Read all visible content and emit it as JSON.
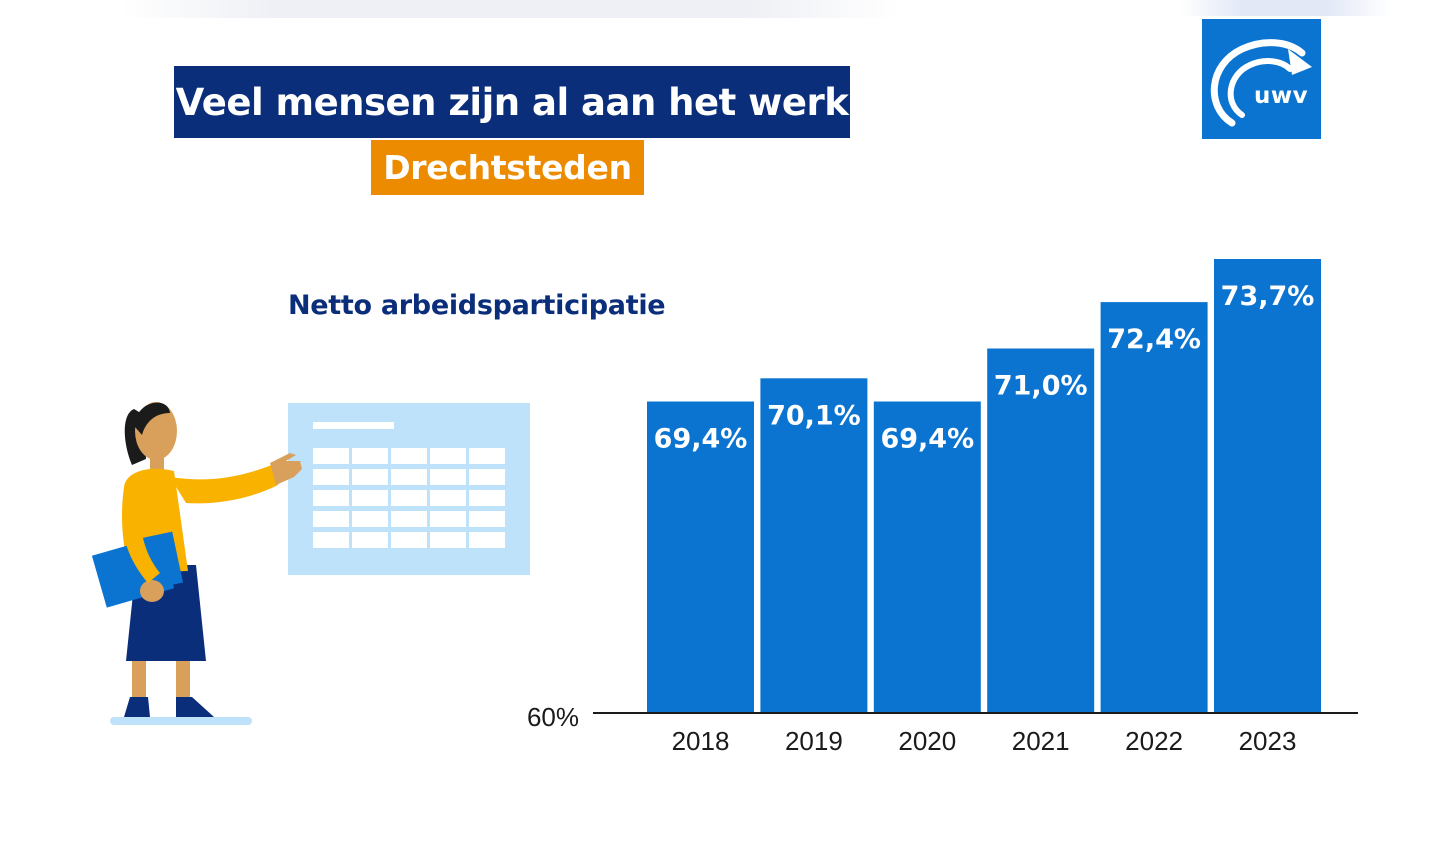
{
  "header": {
    "title": "Veel mensen zijn al aan het werk",
    "subtitle": "Drechtsteden"
  },
  "logo": {
    "text": "uwv",
    "icon": "uwv-arrow-logo-icon"
  },
  "colors": {
    "navy": "#0b2e7b",
    "orange": "#ed8b00",
    "bar_blue": "#0b74d0",
    "light_blue": "#bfe2fb"
  },
  "chart_data": {
    "type": "bar",
    "title": "Netto arbeidsparticipatie",
    "categories": [
      "2018",
      "2019",
      "2020",
      "2021",
      "2022",
      "2023"
    ],
    "values": [
      69.4,
      70.1,
      69.4,
      71.0,
      72.4,
      73.7
    ],
    "value_labels": [
      "69,4%",
      "70,1%",
      "69,4%",
      "71,0%",
      "72,4%",
      "73,7%"
    ],
    "baseline_label": "60%",
    "ylim": [
      60,
      73.7
    ],
    "xlabel": "",
    "ylabel": "",
    "grid": false
  }
}
